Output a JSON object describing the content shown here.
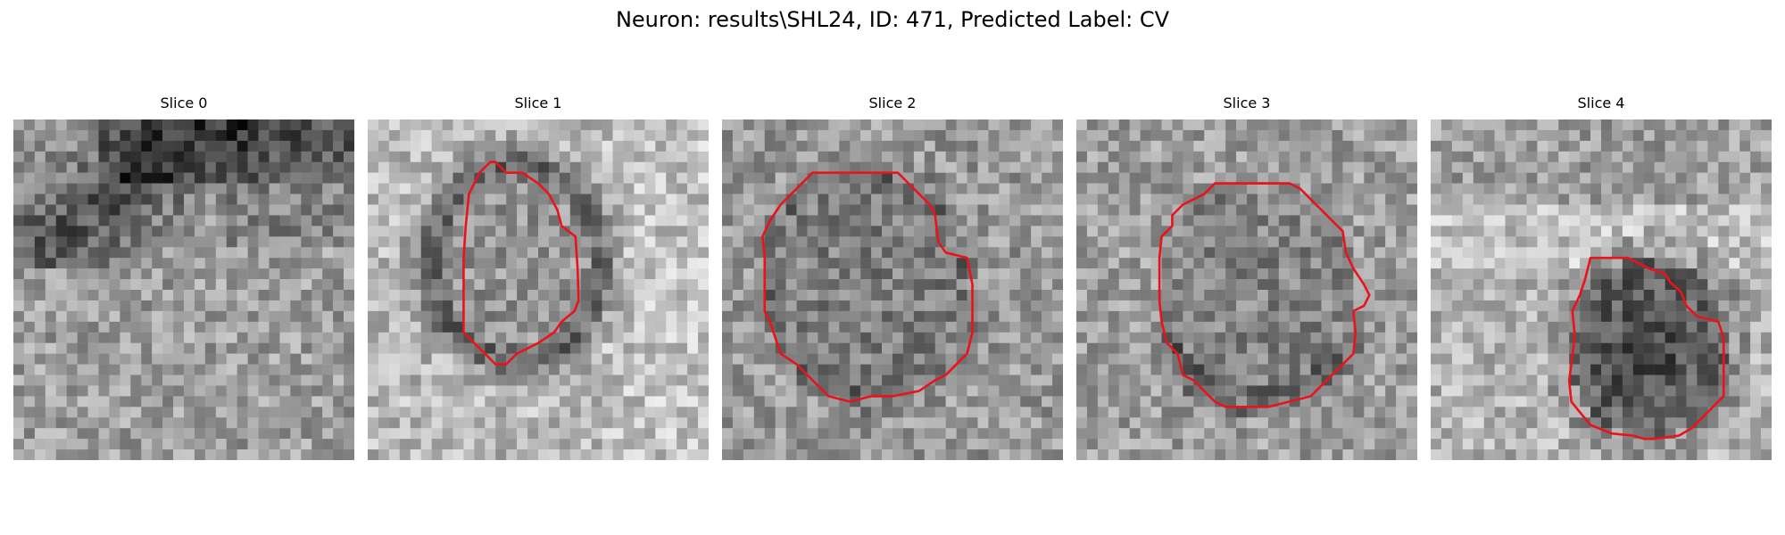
{
  "figure": {
    "title": "Neuron: results\\SHL24, ID: 471, Predicted Label: CV",
    "outline_color": "#e8141c",
    "colormap": "grayscale"
  },
  "panels": [
    {
      "title": "Slice 0",
      "has_outline": false
    },
    {
      "title": "Slice 1",
      "has_outline": true
    },
    {
      "title": "Slice 2",
      "has_outline": true
    },
    {
      "title": "Slice 3",
      "has_outline": true
    },
    {
      "title": "Slice 4",
      "has_outline": true
    }
  ]
}
